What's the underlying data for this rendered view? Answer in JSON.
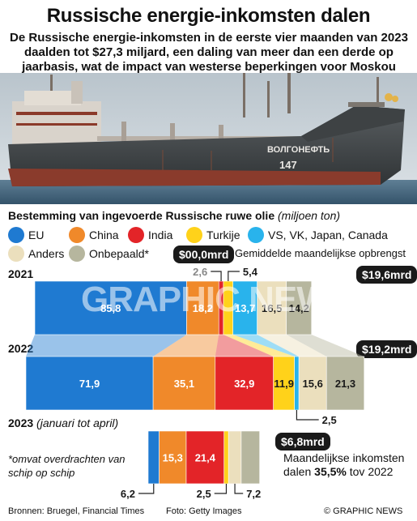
{
  "title": "Russische energie-inkomsten dalen",
  "subtitle": "De Russische energie-inkomsten in de eerste vier maanden van 2023 daalden tot $27,3 miljard, een daling van meer dan een derde op jaarbasis, wat de impact van westerse beperkingen voor Moskou onderstreept",
  "photo": {
    "ship_name": "ВОЛГОНЕФТЬ",
    "ship_number": "147"
  },
  "section_title": "Bestemming van ingevoerde Russische ruwe olie",
  "section_unit": "(miljoen ton)",
  "legend": [
    {
      "label": "EU",
      "color": "#1f7ad1"
    },
    {
      "label": "China",
      "color": "#f0892a"
    },
    {
      "label": "India",
      "color": "#e32428"
    },
    {
      "label": "Turkije",
      "color": "#ffd21a"
    },
    {
      "label": "VS, VK, Japan, Canada",
      "color": "#29b3ec"
    },
    {
      "label": "Anders",
      "color": "#ebdfbd"
    },
    {
      "label": "Onbepaald*",
      "color": "#b6b69e"
    }
  ],
  "legend_badge": "$00,0mrd",
  "legend_note": "Gemiddelde maandelijkse opbrengst",
  "chart_data": {
    "type": "bar",
    "stacked": true,
    "title": "Bestemming van ingevoerde Russische ruwe olie",
    "unit": "miljoen ton",
    "categories": [
      "2021",
      "2022",
      "2023 (januari tot april)"
    ],
    "series": [
      {
        "name": "EU",
        "values": [
          85.8,
          71.9,
          6.2
        ]
      },
      {
        "name": "China",
        "values": [
          18.2,
          35.1,
          15.3
        ]
      },
      {
        "name": "India",
        "values": [
          2.6,
          32.9,
          21.4
        ]
      },
      {
        "name": "Turkije",
        "values": [
          5.4,
          11.9,
          2.5
        ]
      },
      {
        "name": "VS, VK, Japan, Canada",
        "values": [
          13.7,
          2.5,
          0
        ]
      },
      {
        "name": "Anders",
        "values": [
          16.5,
          15.6,
          7.2
        ]
      },
      {
        "name": "Onbepaald*",
        "values": [
          14.2,
          21.3,
          10.4
        ]
      }
    ],
    "monthly_revenue": [
      "$19,6mrd",
      "$19,2mrd",
      "$6,8mrd"
    ]
  },
  "years": {
    "y2021": "2021",
    "y2022": "2022",
    "y2023": "2023",
    "y2023_sub": "(januari tot april)"
  },
  "labels": {
    "india_2021": "2,6",
    "turkije_2021": "5,4",
    "vs_2022": "2,5",
    "eu_2023": "6,2",
    "turkije_2023": "2,5",
    "anders_2023": "7,2"
  },
  "footnote": "*omvat overdrachten van schip op schip",
  "note_prefix": "Maandelijkse inkomsten dalen ",
  "note_value": "35,5%",
  "note_suffix": " tov 2022",
  "watermark": "GRAPHIC NEWS",
  "footer": {
    "sources": "Bronnen: Bruegel, Financial Times",
    "photo": "Foto: Getty Images",
    "copyright": "© GRAPHIC NEWS"
  }
}
